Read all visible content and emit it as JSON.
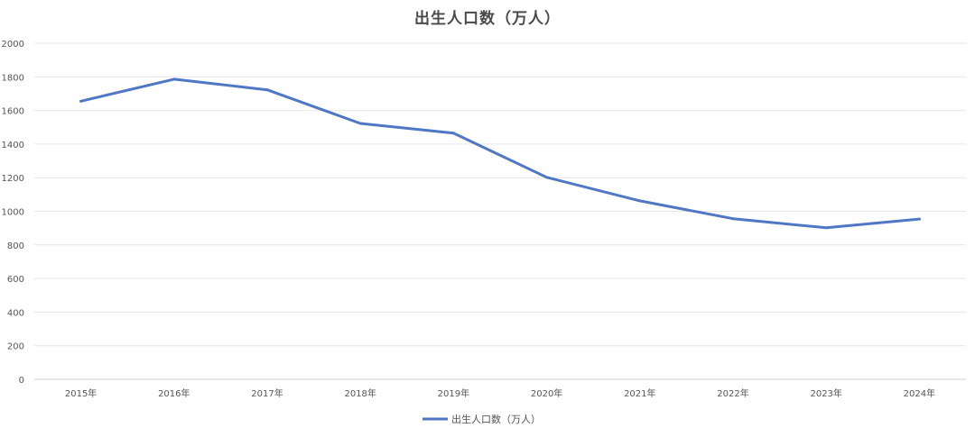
{
  "chart_data": {
    "type": "line",
    "title": "出生人口数（万人）",
    "categories": [
      "2015年",
      "2016年",
      "2017年",
      "2018年",
      "2019年",
      "2020年",
      "2021年",
      "2022年",
      "2023年",
      "2024年"
    ],
    "series": [
      {
        "name": "出生人口数（万人）",
        "values": [
          1655,
          1786,
          1723,
          1523,
          1465,
          1202,
          1062,
          956,
          902,
          954
        ],
        "color": "#4f77c6"
      }
    ],
    "ylim": [
      0,
      2000
    ],
    "yticks": [
      0,
      200,
      400,
      600,
      800,
      1000,
      1200,
      1400,
      1600,
      1800,
      2000
    ],
    "grid": true,
    "gridColor": "#e6e6e6",
    "legend": "bottom-center"
  }
}
